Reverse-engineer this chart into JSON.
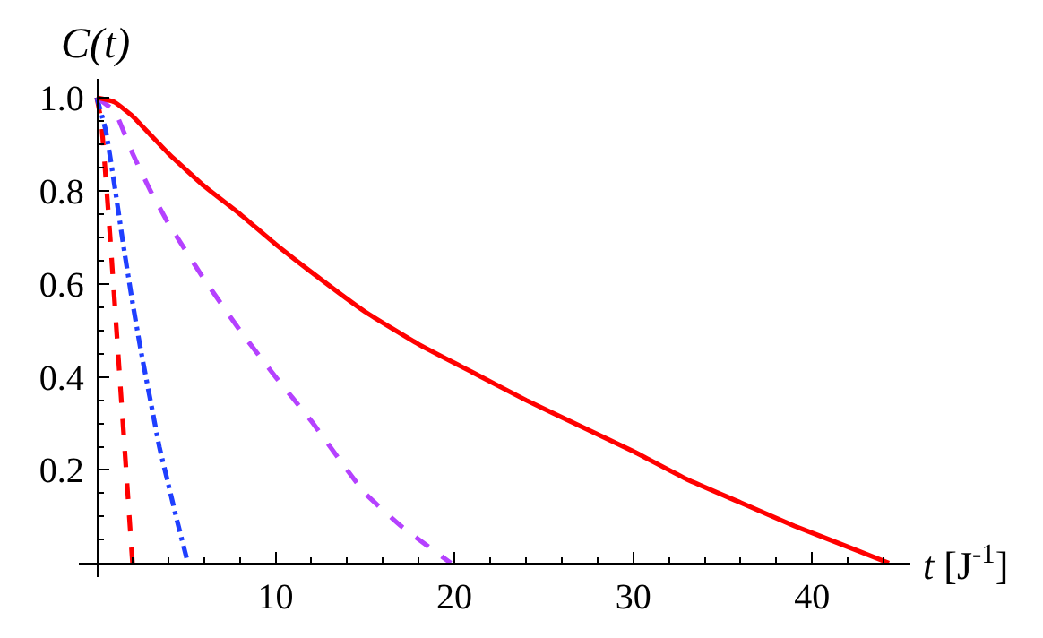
{
  "chart_data": {
    "type": "line",
    "xlabel": "t [J$^{-1}$]",
    "ylabel": "C(t)",
    "xlim": [
      -1,
      45.5
    ],
    "ylim": [
      -0.03,
      1.04
    ],
    "xticks": [
      10,
      20,
      30,
      40,
      {
        "value": 2,
        "label": null
      },
      {
        "value": 4,
        "label": null
      },
      {
        "value": 6,
        "label": null
      },
      {
        "value": 8,
        "label": null
      },
      {
        "value": 12,
        "label": null
      },
      {
        "value": 14,
        "label": null
      },
      {
        "value": 16,
        "label": null
      },
      {
        "value": 18,
        "label": null
      },
      {
        "value": 22,
        "label": null
      },
      {
        "value": 24,
        "label": null
      },
      {
        "value": 26,
        "label": null
      },
      {
        "value": 28,
        "label": null
      },
      {
        "value": 32,
        "label": null
      },
      {
        "value": 34,
        "label": null
      },
      {
        "value": 36,
        "label": null
      },
      {
        "value": 38,
        "label": null
      },
      {
        "value": 42,
        "label": null
      },
      {
        "value": 44,
        "label": null
      }
    ],
    "yticks": [
      0.2,
      0.4,
      0.6,
      0.8,
      {
        "value": 1,
        "label": "1.0"
      },
      {
        "value": 0.05,
        "label": null
      },
      {
        "value": 0.1,
        "label": null
      },
      {
        "value": 0.15,
        "label": null
      },
      {
        "value": 0.25,
        "label": null
      },
      {
        "value": 0.3,
        "label": null
      },
      {
        "value": 0.35,
        "label": null
      },
      {
        "value": 0.45,
        "label": null
      },
      {
        "value": 0.5,
        "label": null
      },
      {
        "value": 0.55,
        "label": null
      },
      {
        "value": 0.65,
        "label": null
      },
      {
        "value": 0.7,
        "label": null
      },
      {
        "value": 0.75,
        "label": null
      },
      {
        "value": 0.85,
        "label": null
      },
      {
        "value": 0.9,
        "label": null
      },
      {
        "value": 0.95,
        "label": null
      }
    ],
    "grid": false,
    "legend": false,
    "marker": "none",
    "series": [
      {
        "color": "#ff0000",
        "line_style": "solid",
        "x": [
          0,
          1,
          2,
          3,
          4,
          6,
          8,
          10,
          12,
          15,
          18,
          21,
          24,
          27,
          30,
          33,
          36,
          39,
          42,
          44.3
        ],
        "values": [
          1.0,
          0.99,
          0.96,
          0.92,
          0.88,
          0.81,
          0.75,
          0.685,
          0.625,
          0.54,
          0.47,
          0.41,
          0.35,
          0.295,
          0.24,
          0.18,
          0.13,
          0.08,
          0.035,
          0
        ]
      },
      {
        "color": "#b541ff",
        "line_style": "dashed",
        "x": [
          0,
          1,
          2,
          3,
          4,
          6,
          8,
          10,
          12,
          14,
          15,
          17,
          19.8
        ],
        "values": [
          1.0,
          0.97,
          0.88,
          0.8,
          0.73,
          0.61,
          0.5,
          0.4,
          0.305,
          0.2,
          0.15,
          0.08,
          0
        ]
      },
      {
        "color": "#1f3fff",
        "line_style": "dashdot",
        "x": [
          0,
          0.5,
          1,
          1.5,
          2,
          2.5,
          3,
          3.5,
          4,
          4.5,
          5.1
        ],
        "values": [
          1.0,
          0.93,
          0.81,
          0.68,
          0.56,
          0.45,
          0.35,
          0.25,
          0.17,
          0.09,
          0
        ]
      },
      {
        "color": "#ff0000",
        "line_style": "dashed",
        "x": [
          0,
          0.25,
          0.5,
          0.75,
          1,
          1.25,
          1.5,
          1.75,
          2
        ],
        "values": [
          1.0,
          0.95,
          0.83,
          0.7,
          0.56,
          0.42,
          0.28,
          0.14,
          0
        ]
      }
    ]
  }
}
